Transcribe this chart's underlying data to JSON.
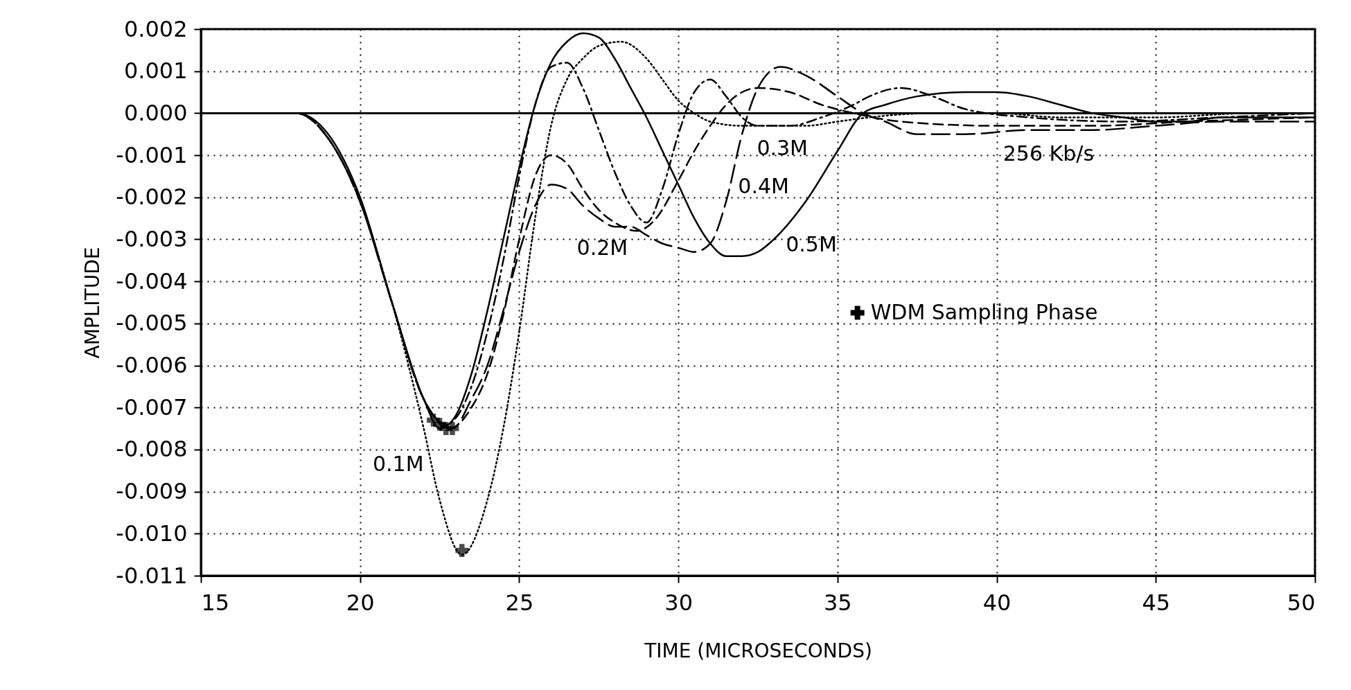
{
  "chart_data": {
    "type": "line",
    "xlabel": "TIME (MICROSECONDS)",
    "ylabel": "AMPLITUDE",
    "xlim": [
      15,
      50
    ],
    "xticks": [
      15,
      20,
      25,
      30,
      35,
      40,
      45,
      50
    ],
    "ylim": [
      -0.011,
      0.002
    ],
    "yticks": [
      {
        "value": 0.002,
        "label": "0.002"
      },
      {
        "value": 0.001,
        "label": "0.001"
      },
      {
        "value": 0,
        "label": "0.000"
      },
      {
        "value": -0.001,
        "label": "-0.001"
      },
      {
        "value": -0.002,
        "label": "-0.002"
      },
      {
        "value": -0.003,
        "label": "-0.003"
      },
      {
        "value": -0.004,
        "label": "-0.004"
      },
      {
        "value": -0.005,
        "label": "-0.005"
      },
      {
        "value": -0.006,
        "label": "-0.006"
      },
      {
        "value": -0.007,
        "label": "-0.007"
      },
      {
        "value": -0.008,
        "label": "-0.008"
      },
      {
        "value": -0.009,
        "label": "-0.009"
      },
      {
        "value": -0.01,
        "label": "-0.010"
      },
      {
        "value": -0.011,
        "label": "-0.011"
      }
    ],
    "grid": true,
    "legend": "right",
    "ref_lines": [
      {
        "axis": "y",
        "value": 0,
        "color": "#000000",
        "line_style": "solid"
      }
    ],
    "annotations": [
      "256 Kb/s"
    ],
    "series": [
      {
        "name": "0.1M",
        "color": "#000000",
        "line_style": "dotted",
        "x": [
          15,
          17,
          18,
          19,
          20,
          21,
          22,
          22.5,
          23.2,
          24,
          24.5,
          25,
          25.5,
          26,
          26.5,
          27,
          27.5,
          28.2,
          29,
          29.5,
          30,
          30.5,
          31,
          32,
          33,
          34,
          35,
          36,
          38,
          40,
          42,
          45,
          48,
          50
        ],
        "values": [
          0,
          0,
          0,
          -0.0006,
          -0.0021,
          -0.0045,
          -0.0075,
          -0.0092,
          -0.0105,
          -0.0092,
          -0.0075,
          -0.0052,
          -0.0025,
          -0.0003,
          0.0008,
          0.0013,
          0.0016,
          0.0017,
          0.0013,
          0.0008,
          0.0003,
          0,
          -0.0002,
          -0.0003,
          -0.0003,
          -0.0003,
          -0.0002,
          -0.0001,
          0,
          0,
          -0.0001,
          -0.0001,
          0,
          0
        ]
      },
      {
        "name": "0.2M",
        "color": "#000000",
        "line_style": "dashed",
        "x": [
          15,
          17,
          18,
          19,
          20,
          21,
          22,
          22.8,
          23.5,
          24,
          24.5,
          25,
          25.5,
          26,
          26.5,
          27,
          27.5,
          28,
          28.7,
          29.3,
          30,
          30.5,
          31,
          31.5,
          32.5,
          33.5,
          34.5,
          35.5,
          37,
          40,
          43,
          46,
          50
        ],
        "values": [
          0,
          0,
          0,
          -0.0006,
          -0.0021,
          -0.0045,
          -0.0068,
          -0.0075,
          -0.007,
          -0.0062,
          -0.0048,
          -0.003,
          -0.0015,
          -0.001,
          -0.0012,
          -0.0018,
          -0.0023,
          -0.0026,
          -0.0028,
          -0.0025,
          -0.0016,
          -0.0009,
          -0.0003,
          0.0002,
          0.0006,
          0.0005,
          0.0002,
          0,
          -0.0002,
          -0.0003,
          -0.0003,
          -0.0002,
          -0.0001
        ]
      },
      {
        "name": "0.3M",
        "color": "#000000",
        "line_style": "dashdot",
        "x": [
          15,
          17,
          18,
          19,
          20,
          21,
          22,
          22.7,
          23.5,
          24,
          24.5,
          25,
          25.5,
          26,
          26.5,
          27,
          27.5,
          28,
          28.5,
          29,
          29.5,
          30,
          30.5,
          31,
          31.5,
          32,
          32.5,
          33.5,
          34.5,
          35.5,
          36,
          37,
          38,
          39,
          41,
          44,
          47,
          50
        ],
        "values": [
          0,
          0,
          0,
          -0.0006,
          -0.0021,
          -0.0045,
          -0.0068,
          -0.0074,
          -0.0065,
          -0.0052,
          -0.0035,
          -0.0015,
          0.0002,
          0.0011,
          0.0012,
          0.0006,
          -0.0004,
          -0.0014,
          -0.0022,
          -0.0026,
          -0.0018,
          -0.0005,
          0.0005,
          0.0008,
          0.0004,
          -0.0001,
          -0.0003,
          -0.0003,
          -0.0001,
          0.0002,
          0.0004,
          0.0006,
          0.0004,
          0.0001,
          -0.0001,
          -0.0002,
          -0.0001,
          0
        ]
      },
      {
        "name": "0.4M",
        "color": "#000000",
        "line_style": "longdash",
        "x": [
          15,
          17,
          18,
          19,
          20,
          21,
          22,
          22.9,
          23.5,
          24,
          24.5,
          25,
          25.5,
          26,
          26.5,
          27,
          27.5,
          28,
          28.5,
          29,
          29.5,
          30,
          30.5,
          31,
          31.5,
          32,
          32.5,
          33.2,
          34,
          35,
          35.8,
          36.5,
          37.5,
          39,
          41,
          43,
          45,
          47,
          50
        ],
        "values": [
          0,
          0,
          0,
          -0.0006,
          -0.0021,
          -0.0045,
          -0.0068,
          -0.0075,
          -0.0068,
          -0.006,
          -0.0047,
          -0.0033,
          -0.0022,
          -0.0017,
          -0.0018,
          -0.0022,
          -0.0025,
          -0.0027,
          -0.0027,
          -0.0029,
          -0.0031,
          -0.0032,
          -0.0033,
          -0.0031,
          -0.0021,
          -0.0005,
          0.0006,
          0.0011,
          0.0009,
          0.0004,
          0,
          -0.0002,
          -0.0005,
          -0.0005,
          -0.0004,
          -0.0004,
          -0.0003,
          -0.0002,
          -0.0002
        ]
      },
      {
        "name": "0.5M",
        "color": "#000000",
        "line_style": "solid",
        "x": [
          15,
          16,
          17,
          18,
          19,
          20,
          21,
          22,
          22.5,
          23,
          23.5,
          24,
          24.5,
          25,
          25.5,
          26,
          26.5,
          27,
          27.5,
          28,
          28.5,
          29,
          29.5,
          30,
          30.5,
          31,
          31.5,
          32,
          32.5,
          33,
          34,
          35,
          35.8,
          36.5,
          37.5,
          39,
          40,
          41,
          42,
          43,
          44,
          45,
          46,
          47,
          50
        ],
        "values": [
          0,
          0,
          0,
          0,
          -0.0005,
          -0.002,
          -0.0045,
          -0.0068,
          -0.0075,
          -0.0072,
          -0.0062,
          -0.0047,
          -0.003,
          -0.0013,
          0.0002,
          0.0012,
          0.0017,
          0.0019,
          0.0018,
          0.0013,
          0.0006,
          -0.0001,
          -0.0009,
          -0.0017,
          -0.0025,
          -0.0031,
          -0.0034,
          -0.0034,
          -0.0033,
          -0.003,
          -0.0021,
          -0.0009,
          0,
          0.0002,
          0.0004,
          0.0005,
          0.0005,
          0.0004,
          0.0002,
          0,
          -0.0001,
          -0.0002,
          -0.0002,
          -0.0001,
          -0.0001
        ]
      },
      {
        "name": "WDM Sampling Phase",
        "type": "scatter",
        "marker": "cross",
        "color": "#000000",
        "x": [
          22.3,
          22.5,
          22.7,
          22.9,
          23.2
        ],
        "values": [
          -0.0073,
          -0.0074,
          -0.0075,
          -0.0075,
          -0.0104
        ]
      }
    ]
  }
}
